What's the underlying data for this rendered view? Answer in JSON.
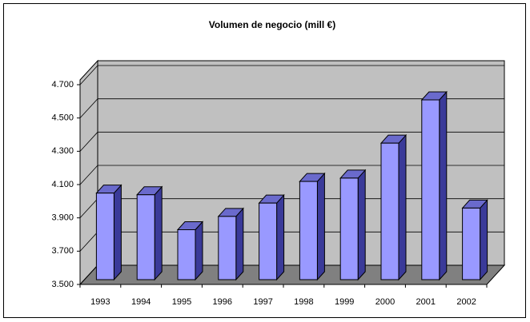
{
  "chart_data": {
    "type": "bar3d",
    "title": "Volumen  de negocio (mill €)",
    "categories": [
      "1993",
      "1994",
      "1995",
      "1996",
      "1997",
      "1998",
      "1999",
      "2000",
      "2001",
      "2002"
    ],
    "values": [
      4020,
      4010,
      3800,
      3880,
      3960,
      4090,
      4110,
      4320,
      4580,
      3930
    ],
    "color": "#9999ff",
    "ylim": [
      3500,
      4700
    ],
    "yticks": [
      {
        "value": 3500,
        "label": "3.500"
      },
      {
        "value": 3700,
        "label": "3.700"
      },
      {
        "value": 3900,
        "label": "3.900"
      },
      {
        "value": 4100,
        "label": "4.100"
      },
      {
        "value": 4300,
        "label": "4.300"
      },
      {
        "value": 4500,
        "label": "4.500"
      },
      {
        "value": 4700,
        "label": "4.700"
      }
    ],
    "grid": true
  }
}
